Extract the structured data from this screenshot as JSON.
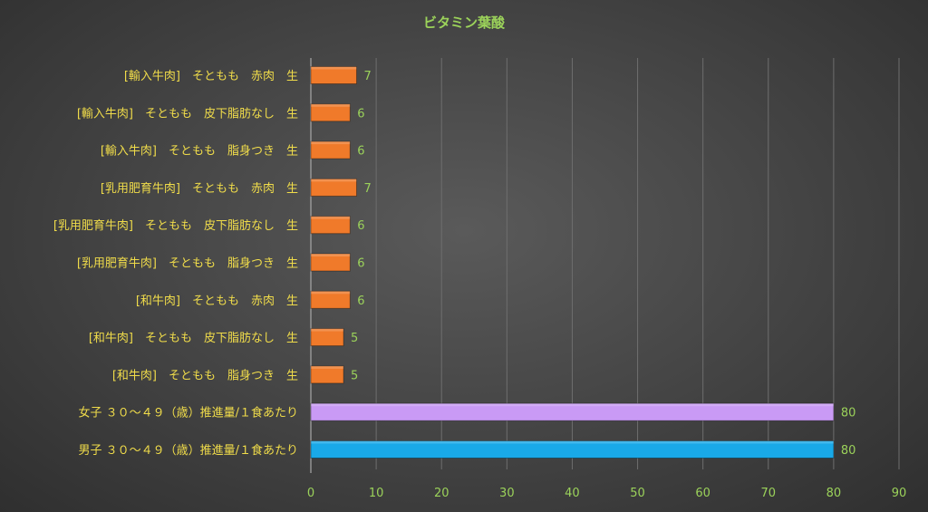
{
  "chart_data": {
    "type": "bar",
    "orientation": "horizontal",
    "title": "ビタミン葉酸",
    "xlim": [
      0,
      90
    ],
    "x_ticks": [
      0,
      10,
      20,
      30,
      40,
      50,
      60,
      70,
      80,
      90
    ],
    "grid": true,
    "categories": [
      "[輸入牛肉]　そともも　赤肉　生",
      "[輸入牛肉]　そともも　皮下脂肪なし　生",
      "[輸入牛肉]　そともも　脂身つき　生",
      "[乳用肥育牛肉]　そともも　赤肉　生",
      "[乳用肥育牛肉]　そともも　皮下脂肪なし　生",
      "[乳用肥育牛肉]　そともも　脂身つき　生",
      "[和牛肉]　そともも　赤肉　生",
      "[和牛肉]　そともも　皮下脂肪なし　生",
      "[和牛肉]　そともも　脂身つき　生",
      "女子 ３０～４９（歳）推進量/１食あたり",
      "男子 ３０～４９（歳）推進量/１食あたり"
    ],
    "values": [
      7,
      6,
      6,
      7,
      6,
      6,
      6,
      5,
      5,
      80,
      80
    ],
    "bar_colors": [
      "#f07a2a",
      "#f07a2a",
      "#f07a2a",
      "#f07a2a",
      "#f07a2a",
      "#f07a2a",
      "#f07a2a",
      "#f07a2a",
      "#f07a2a",
      "#c99af5",
      "#19a9e8"
    ]
  },
  "colors": {
    "title": "#9bd25a",
    "category_label": "#f0dc4a",
    "tick_label": "#9bd25a",
    "value_label": "#9bd25a",
    "grid": "#6e6e6e",
    "axis": "#a8a8a8"
  }
}
